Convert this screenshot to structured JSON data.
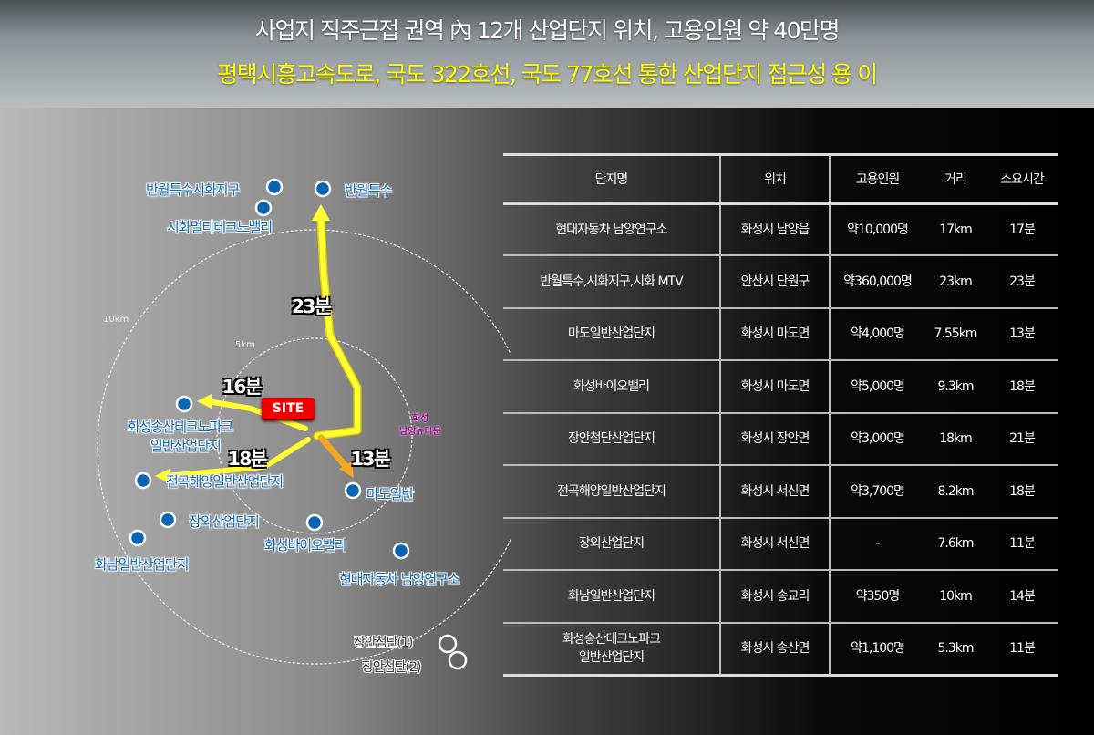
{
  "header": {
    "title": "사업지 직주근접 권역 內 12개 산업단지 위치, 고용인원 약 40만명",
    "subtitle": "평택시흥고속도로, 국도 322호선, 국도 77호선 통한 산업단지 접근성 용 이"
  },
  "map": {
    "site": "SITE",
    "rings": {
      "outer": "10km",
      "inner": "5km"
    },
    "newtown": [
      "화성",
      "남양뉴타운"
    ],
    "labels": {
      "banwol_sihwa": "반월특수시화지구",
      "sihwa_mtv": "시화멀티테크노밸리",
      "banwol": "반월특수",
      "songsan_1": "화성송산테크노파크",
      "songsan_2": "일반산업단지",
      "jeongok": "전곡해양일반산업단지",
      "jangoe": "장외산업단지",
      "hwanam": "화남일반산업단지",
      "bio": "화성바이오밸리",
      "mado": "마도일반",
      "hyundai": "현대자동차 남양연구소",
      "jangan1": "장안첨단(1)",
      "jangan2": "장안첨단(2)"
    },
    "times": {
      "north": "23분",
      "west": "16분",
      "southwest": "18분",
      "southeast": "13분"
    },
    "colors": {
      "dot": "#0a64b4",
      "route": "#ffff00",
      "route_alt": "#f5a623",
      "site": "#e00000"
    }
  },
  "table": {
    "headers": [
      "단지명",
      "위치",
      "고용인원",
      "거리",
      "소요시간"
    ],
    "rows": [
      [
        "현대자동차 남양연구소",
        "화성시 남양읍",
        "약10,000명",
        "17km",
        "17분"
      ],
      [
        "반월특수,시화지구,시화 MTV",
        "안산시 단원구",
        "약360,000명",
        "23km",
        "23분"
      ],
      [
        "마도일반산업단지",
        "화성시 마도면",
        "약4,000명",
        "7.55km",
        "13분"
      ],
      [
        "화성바이오밸리",
        "화성시 마도면",
        "약5,000명",
        "9.3km",
        "18분"
      ],
      [
        "장안첨단산업단지",
        "화성시 장안면",
        "약3,000명",
        "18km",
        "21분"
      ],
      [
        "전곡해양일반산업단지",
        "화성시 서신면",
        "약3,700명",
        "8.2km",
        "18분"
      ],
      [
        "장외산업단지",
        "화성시 서신면",
        "-",
        "7.6km",
        "11분"
      ],
      [
        "화남일반산업단지",
        "화성시 송교리",
        "약350명",
        "10km",
        "14분"
      ],
      [
        "화성송산테크노파크\n일반산업단지",
        "화성시 송산면",
        "약1,100명",
        "5.3km",
        "11분"
      ]
    ]
  }
}
